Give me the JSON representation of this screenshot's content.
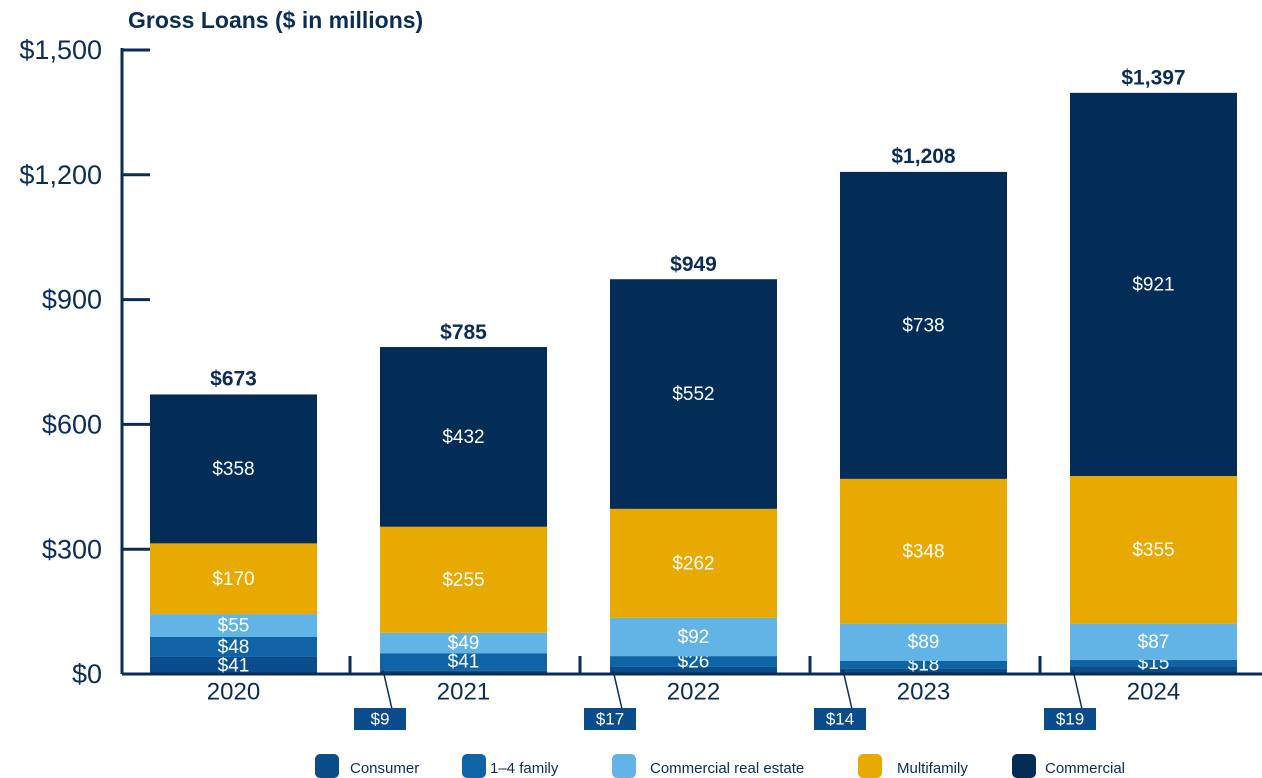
{
  "chart_data": {
    "type": "stacked_bar",
    "title": "Gross Loans ($ in millions)",
    "categories": [
      "2020",
      "2021",
      "2022",
      "2023",
      "2024"
    ],
    "series": [
      {
        "name": "Consumer",
        "color": "#0b4d8a",
        "values": [
          41,
          9,
          17,
          14,
          19
        ],
        "value_labels": [
          "$41",
          "$9",
          "$17",
          "$14",
          "$19"
        ]
      },
      {
        "name": "1–4 family",
        "color": "#0f64a6",
        "values": [
          48,
          41,
          26,
          18,
          15
        ],
        "value_labels": [
          "$48",
          "$41",
          "$26",
          "$18",
          "$15"
        ]
      },
      {
        "name": "Commercial real estate",
        "color": "#63b4e6",
        "values": [
          55,
          49,
          92,
          89,
          87
        ],
        "value_labels": [
          "$55",
          "$49",
          "$92",
          "$89",
          "$87"
        ]
      },
      {
        "name": "Multifamily",
        "color": "#e8a900",
        "values": [
          170,
          255,
          262,
          348,
          355
        ],
        "value_labels": [
          "$170",
          "$255",
          "$262",
          "$348",
          "$355"
        ]
      },
      {
        "name": "Commercial",
        "color": "#032d57",
        "values": [
          358,
          432,
          552,
          738,
          921
        ],
        "value_labels": [
          "$358",
          "$432",
          "$552",
          "$738",
          "$921"
        ]
      }
    ],
    "totals": [
      673,
      785,
      949,
      1208,
      1397
    ],
    "total_labels": [
      "$673",
      "$785",
      "$949",
      "$1,208",
      "$1,397"
    ],
    "ylim": [
      0,
      1500
    ],
    "yticks": [
      {
        "value": 0,
        "label": "$0"
      },
      {
        "value": 300,
        "label": "$300"
      },
      {
        "value": 600,
        "label": "$600"
      },
      {
        "value": 900,
        "label": "$900"
      },
      {
        "value": 1200,
        "label": "$1,200"
      },
      {
        "value": 1500,
        "label": "$1,500"
      }
    ],
    "legend": "bottom"
  }
}
